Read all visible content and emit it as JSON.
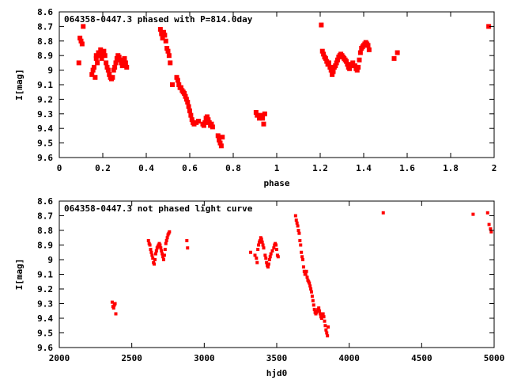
{
  "chart_data": [
    {
      "type": "scatter",
      "title": "064358-0447.3 phased with P=814.0day",
      "xlabel": "phase",
      "ylabel": "I[mag]",
      "xlim": [
        0,
        2
      ],
      "ylim": [
        9.6,
        8.6
      ],
      "y_inverted": true,
      "grid": false,
      "marker_color": "#ff0000",
      "x_ticks": [
        0,
        0.2,
        0.4,
        0.6,
        0.8,
        1,
        1.2,
        1.4,
        1.6,
        1.8,
        2
      ],
      "x_tick_labels": [
        "0",
        "0.2",
        "0.4",
        "0.6",
        "0.8",
        "1",
        "1.2",
        "1.4",
        "1.6",
        "1.8",
        "2"
      ],
      "y_ticks": [
        8.6,
        8.7,
        8.8,
        8.9,
        9.0,
        9.1,
        9.2,
        9.3,
        9.4,
        9.5,
        9.6
      ],
      "y_tick_labels": [
        "8.6",
        "8.7",
        "8.8",
        "8.9",
        "9",
        "9.1",
        "9.2",
        "9.3",
        "9.4",
        "9.5",
        "9.6"
      ],
      "points": [
        [
          0.09,
          8.95
        ],
        [
          0.095,
          8.78
        ],
        [
          0.1,
          8.8
        ],
        [
          0.105,
          8.82
        ],
        [
          0.11,
          8.7
        ],
        [
          0.15,
          9.03
        ],
        [
          0.155,
          9.0
        ],
        [
          0.16,
          8.98
        ],
        [
          0.165,
          9.05
        ],
        [
          0.17,
          8.92
        ],
        [
          0.17,
          8.9
        ],
        [
          0.175,
          8.95
        ],
        [
          0.18,
          8.88
        ],
        [
          0.185,
          8.9
        ],
        [
          0.19,
          8.86
        ],
        [
          0.195,
          8.92
        ],
        [
          0.2,
          8.89
        ],
        [
          0.205,
          8.87
        ],
        [
          0.21,
          8.9
        ],
        [
          0.215,
          8.95
        ],
        [
          0.22,
          8.98
        ],
        [
          0.225,
          9.0
        ],
        [
          0.23,
          9.03
        ],
        [
          0.235,
          9.05
        ],
        [
          0.24,
          9.06
        ],
        [
          0.245,
          9.05
        ],
        [
          0.25,
          9.0
        ],
        [
          0.255,
          8.98
        ],
        [
          0.26,
          8.95
        ],
        [
          0.265,
          8.92
        ],
        [
          0.27,
          8.9
        ],
        [
          0.275,
          8.91
        ],
        [
          0.28,
          8.93
        ],
        [
          0.285,
          8.95
        ],
        [
          0.29,
          8.97
        ],
        [
          0.3,
          8.92
        ],
        [
          0.305,
          8.95
        ],
        [
          0.31,
          8.98
        ],
        [
          0.465,
          8.72
        ],
        [
          0.47,
          8.75
        ],
        [
          0.475,
          8.78
        ],
        [
          0.48,
          8.74
        ],
        [
          0.485,
          8.76
        ],
        [
          0.49,
          8.8
        ],
        [
          0.495,
          8.85
        ],
        [
          0.5,
          8.87
        ],
        [
          0.505,
          8.9
        ],
        [
          0.51,
          8.95
        ],
        [
          0.52,
          9.1
        ],
        [
          0.54,
          9.05
        ],
        [
          0.545,
          9.07
        ],
        [
          0.55,
          9.1
        ],
        [
          0.555,
          9.12
        ],
        [
          0.56,
          9.12
        ],
        [
          0.565,
          9.14
        ],
        [
          0.57,
          9.15
        ],
        [
          0.575,
          9.16
        ],
        [
          0.58,
          9.18
        ],
        [
          0.585,
          9.2
        ],
        [
          0.59,
          9.22
        ],
        [
          0.595,
          9.25
        ],
        [
          0.6,
          9.28
        ],
        [
          0.605,
          9.31
        ],
        [
          0.61,
          9.34
        ],
        [
          0.615,
          9.36
        ],
        [
          0.62,
          9.37
        ],
        [
          0.63,
          9.36
        ],
        [
          0.64,
          9.35
        ],
        [
          0.66,
          9.37
        ],
        [
          0.665,
          9.38
        ],
        [
          0.67,
          9.36
        ],
        [
          0.675,
          9.33
        ],
        [
          0.68,
          9.32
        ],
        [
          0.685,
          9.34
        ],
        [
          0.69,
          9.36
        ],
        [
          0.695,
          9.38
        ],
        [
          0.7,
          9.37
        ],
        [
          0.705,
          9.39
        ],
        [
          0.73,
          9.45
        ],
        [
          0.735,
          9.48
        ],
        [
          0.74,
          9.5
        ],
        [
          0.745,
          9.52
        ],
        [
          0.75,
          9.46
        ],
        [
          0.905,
          9.29
        ],
        [
          0.91,
          9.31
        ],
        [
          0.92,
          9.33
        ],
        [
          0.925,
          9.32
        ],
        [
          0.93,
          9.31
        ],
        [
          0.935,
          9.33
        ],
        [
          0.94,
          9.37
        ],
        [
          0.945,
          9.3
        ],
        [
          1.205,
          8.69
        ],
        [
          1.21,
          8.87
        ],
        [
          1.215,
          8.89
        ],
        [
          1.22,
          8.91
        ],
        [
          1.225,
          8.92
        ],
        [
          1.23,
          8.94
        ],
        [
          1.235,
          8.96
        ],
        [
          1.24,
          8.95
        ],
        [
          1.245,
          8.98
        ],
        [
          1.25,
          9.0
        ],
        [
          1.255,
          9.03
        ],
        [
          1.26,
          9.01
        ],
        [
          1.265,
          8.98
        ],
        [
          1.27,
          8.97
        ],
        [
          1.275,
          8.95
        ],
        [
          1.28,
          8.93
        ],
        [
          1.285,
          8.91
        ],
        [
          1.29,
          8.9
        ],
        [
          1.295,
          8.89
        ],
        [
          1.3,
          8.9
        ],
        [
          1.305,
          8.91
        ],
        [
          1.31,
          8.92
        ],
        [
          1.315,
          8.93
        ],
        [
          1.32,
          8.94
        ],
        [
          1.325,
          8.96
        ],
        [
          1.33,
          8.98
        ],
        [
          1.335,
          8.99
        ],
        [
          1.34,
          8.97
        ],
        [
          1.345,
          8.96
        ],
        [
          1.35,
          8.95
        ],
        [
          1.36,
          8.97
        ],
        [
          1.365,
          8.99
        ],
        [
          1.37,
          9.0
        ],
        [
          1.375,
          8.98
        ],
        [
          1.38,
          8.93
        ],
        [
          1.385,
          8.88
        ],
        [
          1.39,
          8.85
        ],
        [
          1.395,
          8.84
        ],
        [
          1.4,
          8.83
        ],
        [
          1.405,
          8.82
        ],
        [
          1.41,
          8.81
        ],
        [
          1.415,
          8.82
        ],
        [
          1.42,
          8.83
        ],
        [
          1.425,
          8.86
        ],
        [
          1.54,
          8.92
        ],
        [
          1.555,
          8.88
        ],
        [
          1.975,
          8.7
        ]
      ]
    },
    {
      "type": "scatter",
      "title": "064358-0447.3 not phased light curve",
      "xlabel": "hjd0",
      "ylabel": "I[mag]",
      "xlim": [
        2000,
        5000
      ],
      "ylim": [
        9.6,
        8.6
      ],
      "y_inverted": true,
      "grid": false,
      "marker_color": "#ff0000",
      "x_ticks": [
        2000,
        2500,
        3000,
        3500,
        4000,
        4500,
        5000
      ],
      "x_tick_labels": [
        "2000",
        "2500",
        "3000",
        "3500",
        "4000",
        "4500",
        "5000"
      ],
      "y_ticks": [
        8.6,
        8.7,
        8.8,
        8.9,
        9.0,
        9.1,
        9.2,
        9.3,
        9.4,
        9.5,
        9.6
      ],
      "y_tick_labels": [
        "8.6",
        "8.7",
        "8.8",
        "8.9",
        "9",
        "9.1",
        "9.2",
        "9.3",
        "9.4",
        "9.5",
        "9.6"
      ],
      "points": [
        [
          2365,
          9.29
        ],
        [
          2370,
          9.32
        ],
        [
          2375,
          9.33
        ],
        [
          2380,
          9.31
        ],
        [
          2385,
          9.3
        ],
        [
          2390,
          9.37
        ],
        [
          2615,
          8.87
        ],
        [
          2620,
          8.89
        ],
        [
          2625,
          8.9
        ],
        [
          2630,
          8.93
        ],
        [
          2635,
          8.95
        ],
        [
          2640,
          8.97
        ],
        [
          2645,
          8.99
        ],
        [
          2650,
          9.02
        ],
        [
          2655,
          9.03
        ],
        [
          2660,
          9.0
        ],
        [
          2665,
          8.96
        ],
        [
          2670,
          8.94
        ],
        [
          2675,
          8.92
        ],
        [
          2680,
          8.91
        ],
        [
          2685,
          8.9
        ],
        [
          2690,
          8.89
        ],
        [
          2695,
          8.9
        ],
        [
          2700,
          8.92
        ],
        [
          2705,
          8.94
        ],
        [
          2710,
          8.96
        ],
        [
          2715,
          8.98
        ],
        [
          2720,
          9.0
        ],
        [
          2725,
          8.97
        ],
        [
          2730,
          8.93
        ],
        [
          2735,
          8.89
        ],
        [
          2740,
          8.87
        ],
        [
          2745,
          8.85
        ],
        [
          2750,
          8.83
        ],
        [
          2755,
          8.82
        ],
        [
          2760,
          8.81
        ],
        [
          2880,
          8.87
        ],
        [
          2885,
          8.92
        ],
        [
          3320,
          8.95
        ],
        [
          3350,
          8.97
        ],
        [
          3360,
          8.99
        ],
        [
          3365,
          9.02
        ],
        [
          3370,
          8.93
        ],
        [
          3375,
          8.9
        ],
        [
          3380,
          8.88
        ],
        [
          3385,
          8.87
        ],
        [
          3390,
          8.85
        ],
        [
          3395,
          8.86
        ],
        [
          3400,
          8.88
        ],
        [
          3405,
          8.9
        ],
        [
          3410,
          8.92
        ],
        [
          3420,
          8.97
        ],
        [
          3425,
          8.99
        ],
        [
          3430,
          9.02
        ],
        [
          3435,
          9.04
        ],
        [
          3440,
          9.05
        ],
        [
          3445,
          9.03
        ],
        [
          3450,
          9.0
        ],
        [
          3455,
          8.98
        ],
        [
          3460,
          8.96
        ],
        [
          3470,
          8.94
        ],
        [
          3480,
          8.92
        ],
        [
          3485,
          8.9
        ],
        [
          3490,
          8.89
        ],
        [
          3495,
          8.9
        ],
        [
          3500,
          8.93
        ],
        [
          3505,
          8.97
        ],
        [
          3510,
          8.98
        ],
        [
          3630,
          8.7
        ],
        [
          3635,
          8.73
        ],
        [
          3640,
          8.75
        ],
        [
          3645,
          8.77
        ],
        [
          3650,
          8.8
        ],
        [
          3655,
          8.82
        ],
        [
          3660,
          8.87
        ],
        [
          3665,
          8.9
        ],
        [
          3670,
          8.95
        ],
        [
          3675,
          8.98
        ],
        [
          3680,
          9.0
        ],
        [
          3685,
          9.05
        ],
        [
          3690,
          9.08
        ],
        [
          3695,
          9.1
        ],
        [
          3700,
          9.1
        ],
        [
          3705,
          9.08
        ],
        [
          3710,
          9.12
        ],
        [
          3715,
          9.14
        ],
        [
          3720,
          9.15
        ],
        [
          3725,
          9.16
        ],
        [
          3730,
          9.18
        ],
        [
          3735,
          9.2
        ],
        [
          3740,
          9.22
        ],
        [
          3745,
          9.25
        ],
        [
          3750,
          9.28
        ],
        [
          3755,
          9.31
        ],
        [
          3760,
          9.34
        ],
        [
          3765,
          9.36
        ],
        [
          3770,
          9.37
        ],
        [
          3775,
          9.36
        ],
        [
          3780,
          9.35
        ],
        [
          3785,
          9.34
        ],
        [
          3790,
          9.33
        ],
        [
          3795,
          9.35
        ],
        [
          3800,
          9.37
        ],
        [
          3805,
          9.39
        ],
        [
          3810,
          9.4
        ],
        [
          3815,
          9.38
        ],
        [
          3820,
          9.37
        ],
        [
          3825,
          9.39
        ],
        [
          3830,
          9.42
        ],
        [
          3835,
          9.45
        ],
        [
          3840,
          9.48
        ],
        [
          3845,
          9.5
        ],
        [
          3850,
          9.52
        ],
        [
          3855,
          9.46
        ],
        [
          4235,
          8.68
        ],
        [
          4855,
          8.69
        ],
        [
          4955,
          8.68
        ],
        [
          4965,
          8.76
        ],
        [
          4975,
          8.79
        ],
        [
          4980,
          8.81
        ]
      ]
    }
  ]
}
